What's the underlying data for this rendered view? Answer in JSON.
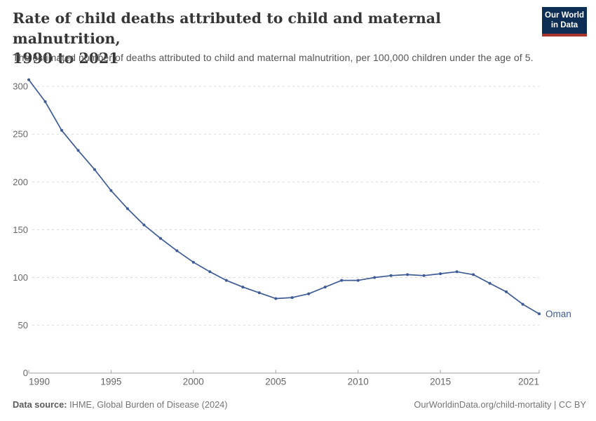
{
  "header": {
    "title_lines": {
      "0": "Rate of child deaths attributed to child and maternal malnutrition,",
      "1": "1990 to 2021"
    },
    "subtitle": "The estimated number of deaths attributed to child and maternal malnutrition, per 100,000 children under the age of 5.",
    "logo": {
      "line1": "Our World",
      "line2": "in Data"
    }
  },
  "chart_data": {
    "type": "line",
    "title": "Rate of child deaths attributed to child and maternal malnutrition, 1990 to 2021",
    "xlabel": "",
    "ylabel": "",
    "x": [
      1990,
      1991,
      1992,
      1993,
      1994,
      1995,
      1996,
      1997,
      1998,
      1999,
      2000,
      2001,
      2002,
      2003,
      2004,
      2005,
      2006,
      2007,
      2008,
      2009,
      2010,
      2011,
      2012,
      2013,
      2014,
      2015,
      2016,
      2017,
      2018,
      2019,
      2020,
      2021
    ],
    "series": [
      {
        "name": "Oman",
        "values": [
          307,
          284,
          254,
          233,
          213,
          191,
          172,
          155,
          141,
          128,
          116,
          106,
          97,
          90,
          84,
          78,
          79,
          83,
          90,
          97,
          97,
          100,
          102,
          103,
          102,
          104,
          106,
          103,
          94,
          85,
          72,
          62
        ]
      }
    ],
    "x_ticks": [
      1990,
      1995,
      2000,
      2005,
      2010,
      2015,
      2021
    ],
    "y_ticks": [
      0,
      50,
      100,
      150,
      200,
      250,
      300
    ],
    "xlim": [
      1990,
      2021
    ],
    "ylim": [
      0,
      300
    ],
    "grid": "horizontal dashed",
    "legend_position": "end-of-line label",
    "markers": true
  },
  "footer": {
    "source_label": "Data source:",
    "source_value": " IHME, Global Burden of Disease (2024)",
    "license": "OurWorldinData.org/child-mortality | CC BY"
  },
  "colors": {
    "line": "#3d5b96",
    "grid": "#d9d9d9",
    "axis": "#a1a1a1",
    "tick_text": "#666666",
    "title_text": "#363636",
    "subtitle_text": "#555555",
    "logo_bg": "#0d2d55",
    "logo_stripe": "#a8342c",
    "footer_text": "#757575"
  }
}
